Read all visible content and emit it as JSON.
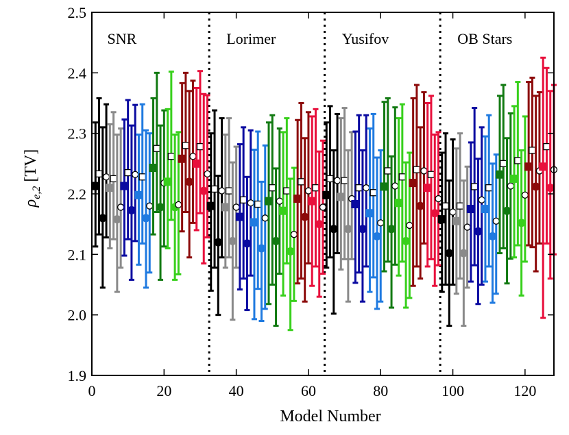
{
  "chart_data": {
    "type": "scatter",
    "title": "",
    "xlabel": "Model Number",
    "ylabel_symbol": "ρ",
    "ylabel_subscript": "e,2",
    "ylabel_unit": "[TV]",
    "xlim": [
      0,
      128
    ],
    "ylim": [
      1.9,
      2.5
    ],
    "xticks": [
      0,
      20,
      40,
      60,
      80,
      100,
      120
    ],
    "yticks": [
      "1.9",
      "2.0",
      "2.1",
      "2.2",
      "2.3",
      "2.4",
      "2.5"
    ],
    "region_dividers": [
      32.5,
      64.5,
      96.5
    ],
    "regions": [
      {
        "name": "SNR",
        "x": 2
      },
      {
        "name": "Lorimer",
        "x": 35
      },
      {
        "name": "Yusifov",
        "x": 67
      },
      {
        "name": "OB Stars",
        "x": 99
      }
    ],
    "group_colors": [
      "#000000",
      "#8a8a8a",
      "#0a0aa0",
      "#1f7ae0",
      "#127a12",
      "#38d01c",
      "#8c0a0a",
      "#e8103c"
    ],
    "marker_order": [
      "filled-square",
      "open-square",
      "filled-circle",
      "open-circle"
    ],
    "series": [
      {
        "name": "SNR",
        "x_start": 1,
        "values": [
          2.213,
          2.233,
          2.16,
          2.228,
          2.21,
          2.225,
          2.158,
          2.178,
          2.213,
          2.235,
          2.173,
          2.232,
          2.198,
          2.228,
          2.16,
          2.18,
          2.243,
          2.275,
          2.178,
          2.218,
          2.22,
          2.262,
          2.178,
          2.182,
          2.258,
          2.28,
          2.22,
          2.262,
          2.25,
          2.278,
          2.205,
          2.233
        ],
        "err_low": [
          0.1,
          0.1,
          0.115,
          0.1,
          0.1,
          0.1,
          0.12,
          0.1,
          0.115,
          0.11,
          0.115,
          0.11,
          0.115,
          0.11,
          0.115,
          0.11,
          0.11,
          0.105,
          0.12,
          0.105,
          0.11,
          0.105,
          0.12,
          0.115,
          0.12,
          0.11,
          0.125,
          0.11,
          0.11,
          0.11,
          0.12,
          0.105
        ],
        "err_high": [
          0.105,
          0.125,
          0.15,
          0.12,
          0.105,
          0.11,
          0.14,
          0.13,
          0.11,
          0.12,
          0.14,
          0.115,
          0.1,
          0.12,
          0.145,
          0.12,
          0.115,
          0.125,
          0.135,
          0.12,
          0.12,
          0.14,
          0.12,
          0.12,
          0.125,
          0.12,
          0.15,
          0.125,
          0.125,
          0.125,
          0.16,
          0.13
        ]
      },
      {
        "name": "Lorimer",
        "x_start": 33,
        "values": [
          2.18,
          2.208,
          2.12,
          2.205,
          2.178,
          2.205,
          2.122,
          2.178,
          2.162,
          2.19,
          2.118,
          2.185,
          2.153,
          2.183,
          2.11,
          2.16,
          2.188,
          2.21,
          2.122,
          2.188,
          2.172,
          2.205,
          2.105,
          2.133,
          2.192,
          2.22,
          2.162,
          2.205,
          2.188,
          2.21,
          2.15,
          2.178
        ],
        "err_low": [
          0.14,
          0.13,
          0.12,
          0.11,
          0.1,
          0.11,
          0.13,
          0.1,
          0.12,
          0.13,
          0.11,
          0.12,
          0.16,
          0.14,
          0.12,
          0.15,
          0.17,
          0.16,
          0.14,
          0.12,
          0.14,
          0.12,
          0.13,
          0.11,
          0.14,
          0.16,
          0.14,
          0.12,
          0.14,
          0.13,
          0.12,
          0.11
        ],
        "err_high": [
          0.12,
          0.13,
          0.11,
          0.12,
          0.12,
          0.12,
          0.13,
          0.1,
          0.12,
          0.12,
          0.11,
          0.12,
          0.12,
          0.12,
          0.11,
          0.12,
          0.13,
          0.12,
          0.12,
          0.12,
          0.13,
          0.12,
          0.12,
          0.11,
          0.13,
          0.13,
          0.13,
          0.13,
          0.14,
          0.13,
          0.12,
          0.11
        ]
      },
      {
        "name": "Yusifov",
        "x_start": 65,
        "values": [
          2.198,
          2.225,
          2.142,
          2.222,
          2.195,
          2.222,
          2.142,
          2.192,
          2.183,
          2.21,
          2.142,
          2.21,
          2.168,
          2.202,
          2.13,
          2.152,
          2.212,
          2.238,
          2.142,
          2.213,
          2.185,
          2.228,
          2.122,
          2.148,
          2.218,
          2.24,
          2.18,
          2.238,
          2.21,
          2.232,
          2.168,
          2.192
        ],
        "err_low": [
          0.12,
          0.13,
          0.14,
          0.12,
          0.12,
          0.13,
          0.12,
          0.1,
          0.13,
          0.14,
          0.12,
          0.13,
          0.13,
          0.14,
          0.12,
          0.13,
          0.14,
          0.15,
          0.13,
          0.13,
          0.12,
          0.14,
          0.11,
          0.12,
          0.17,
          0.16,
          0.12,
          0.12,
          0.13,
          0.14,
          0.12,
          0.11
        ],
        "err_high": [
          0.12,
          0.12,
          0.13,
          0.11,
          0.13,
          0.12,
          0.13,
          0.11,
          0.12,
          0.12,
          0.13,
          0.12,
          0.14,
          0.13,
          0.13,
          0.12,
          0.14,
          0.12,
          0.12,
          0.13,
          0.14,
          0.12,
          0.13,
          0.12,
          0.14,
          0.14,
          0.13,
          0.13,
          0.14,
          0.13,
          0.13,
          0.11
        ]
      },
      {
        "name": "OB Stars",
        "x_start": 97,
        "values": [
          2.158,
          2.18,
          2.102,
          2.17,
          2.155,
          2.18,
          2.102,
          2.145,
          2.175,
          2.212,
          2.138,
          2.19,
          2.175,
          2.21,
          2.13,
          2.155,
          2.232,
          2.25,
          2.172,
          2.213,
          2.225,
          2.255,
          2.152,
          2.198,
          2.245,
          2.272,
          2.212,
          2.238,
          2.245,
          2.278,
          2.21,
          2.24
        ],
        "err_low": [
          0.12,
          0.13,
          0.12,
          0.12,
          0.12,
          0.12,
          0.12,
          0.1,
          0.12,
          0.13,
          0.12,
          0.14,
          0.12,
          0.13,
          0.11,
          0.12,
          0.13,
          0.14,
          0.12,
          0.12,
          0.13,
          0.14,
          0.12,
          0.11,
          0.13,
          0.16,
          0.14,
          0.12,
          0.25,
          0.16,
          0.15,
          0.14
        ],
        "err_high": [
          0.11,
          0.12,
          0.12,
          0.12,
          0.12,
          0.12,
          0.12,
          0.1,
          0.11,
          0.13,
          0.12,
          0.12,
          0.12,
          0.12,
          0.12,
          0.11,
          0.13,
          0.13,
          0.12,
          0.12,
          0.12,
          0.13,
          0.12,
          0.13,
          0.14,
          0.12,
          0.15,
          0.13,
          0.18,
          0.13,
          0.16,
          0.14
        ]
      }
    ]
  }
}
